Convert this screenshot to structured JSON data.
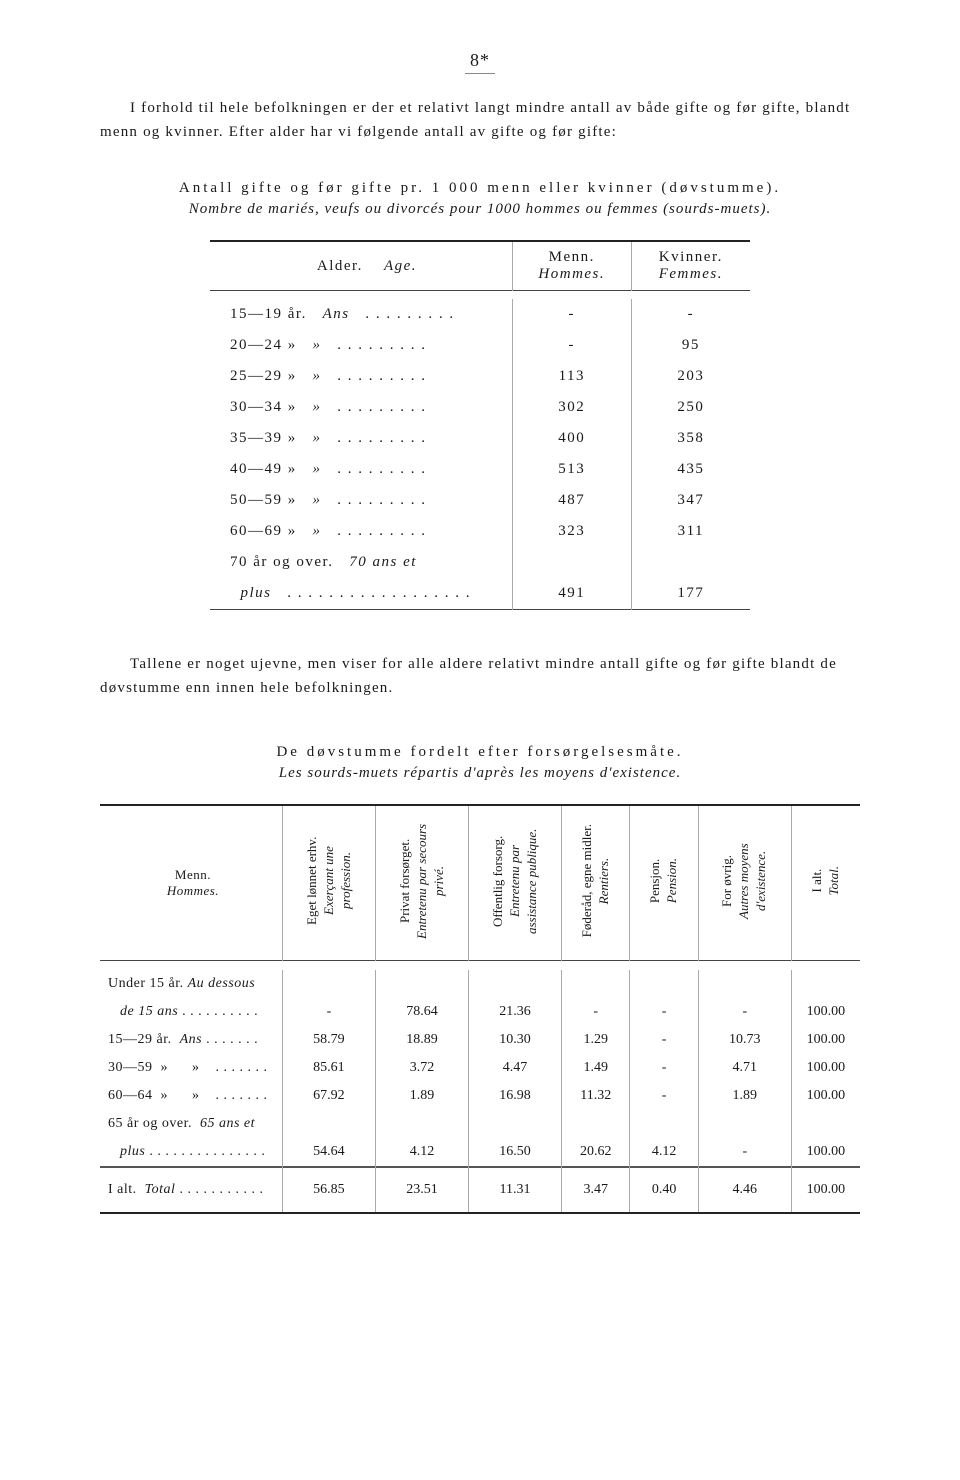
{
  "page_number": "8*",
  "intro_para": "I forhold til hele befolkningen er der et relativt langt mindre antall av både gifte og før gifte, blandt menn og kvinner. Efter alder har vi følgende antall av gifte og før gifte:",
  "table1": {
    "title": "Antall gifte og før gifte pr. 1 000 menn eller kvinner (døvstumme).",
    "subtitle": "Nombre de mariés, veufs ou divorcés pour 1000 hommes ou femmes (sourds-muets).",
    "header_age": "Alder.",
    "header_age_fr": "Age.",
    "header_men": "Menn.",
    "header_men_fr": "Hommes.",
    "header_women": "Kvinner.",
    "header_women_fr": "Femmes.",
    "rows": [
      {
        "age": "15—19 år.",
        "age_fr": "Ans",
        "dots": ". . . . . . . . .",
        "men": "-",
        "women": "-"
      },
      {
        "age": "20—24  »",
        "age_fr": "»",
        "dots": ". . . . . . . . .",
        "men": "-",
        "women": "95"
      },
      {
        "age": "25—29  »",
        "age_fr": "»",
        "dots": ". . . . . . . . .",
        "men": "113",
        "women": "203"
      },
      {
        "age": "30—34  »",
        "age_fr": "»",
        "dots": ". . . . . . . . .",
        "men": "302",
        "women": "250"
      },
      {
        "age": "35—39  »",
        "age_fr": "»",
        "dots": ". . . . . . . . .",
        "men": "400",
        "women": "358"
      },
      {
        "age": "40—49  »",
        "age_fr": "»",
        "dots": ". . . . . . . . .",
        "men": "513",
        "women": "435"
      },
      {
        "age": "50—59  »",
        "age_fr": "»",
        "dots": ". . . . . . . . .",
        "men": "487",
        "women": "347"
      },
      {
        "age": "60—69  »",
        "age_fr": "»",
        "dots": ". . . . . . . . .",
        "men": "323",
        "women": "311"
      }
    ],
    "last_row_label1": "70 år og over.",
    "last_row_label2_fr": "70 ans et",
    "last_row_plus": "plus",
    "last_row_dots": ". . . . . . . . . . . . . . . . . .",
    "last_row_men": "491",
    "last_row_women": "177"
  },
  "mid_para": "Tallene er noget ujevne, men viser for alle aldere relativt mindre antall gifte og før gifte blandt de døvstumme enn innen hele befolkningen.",
  "table2": {
    "title": "De døvstumme fordelt efter forsørgelsesmåte.",
    "subtitle": "Les sourds-muets répartis d'après les moyens d'existence.",
    "stub_header": "Menn.",
    "stub_header_fr": "Hommes.",
    "columns": [
      {
        "main": "Eget lønnet erhv.",
        "sub": "Exerçant une profession."
      },
      {
        "main": "Privat forsørget.",
        "sub": "Entretenu par secours privé."
      },
      {
        "main": "Offentlig forsorg.",
        "sub": "Entretenu par assistance publique."
      },
      {
        "main": "Føderåd, egne midler.",
        "sub": "Rentiers."
      },
      {
        "main": "Pensjon.",
        "sub": "Pension."
      },
      {
        "main": "For øvrig.",
        "sub": "Autres moyens d'existence."
      },
      {
        "main": "I alt.",
        "sub": "Total."
      }
    ],
    "rows": [
      {
        "label": "Under 15 år. <span class=\"ital\">Au dessous</span>",
        "label2": "<span class=\"ital\">de 15 ans</span> . . . . . . . . . .",
        "v": [
          "-",
          "78.64",
          "21.36",
          "-",
          "-",
          "-",
          "100.00"
        ]
      },
      {
        "label": "15—29 år.&nbsp;&nbsp;<span class=\"ital\">Ans</span> . . . . . . .",
        "v": [
          "58.79",
          "18.89",
          "10.30",
          "1.29",
          "-",
          "10.73",
          "100.00"
        ]
      },
      {
        "label": "30—59&nbsp;&nbsp;»&nbsp;&nbsp;&nbsp;&nbsp;&nbsp;&nbsp;»&nbsp;&nbsp;&nbsp; . . . . . . .",
        "v": [
          "85.61",
          "3.72",
          "4.47",
          "1.49",
          "-",
          "4.71",
          "100.00"
        ]
      },
      {
        "label": "60—64&nbsp;&nbsp;»&nbsp;&nbsp;&nbsp;&nbsp;&nbsp;&nbsp;»&nbsp;&nbsp;&nbsp; . . . . . . .",
        "v": [
          "67.92",
          "1.89",
          "16.98",
          "11.32",
          "-",
          "1.89",
          "100.00"
        ]
      },
      {
        "label": "65 år og over.&nbsp;&nbsp;<span class=\"ital\">65 ans et</span>",
        "label2": "<span class=\"ital\">plus</span> . . . . . . . . . . . . . . .",
        "v": [
          "54.64",
          "4.12",
          "16.50",
          "20.62",
          "4.12",
          "-",
          "100.00"
        ]
      }
    ],
    "total_label": "I alt.&nbsp;&nbsp;<span class=\"ital\">Total</span> . . . . . . . . . . .",
    "total_v": [
      "56.85",
      "23.51",
      "11.31",
      "3.47",
      "0.40",
      "4.46",
      "100.00"
    ]
  }
}
